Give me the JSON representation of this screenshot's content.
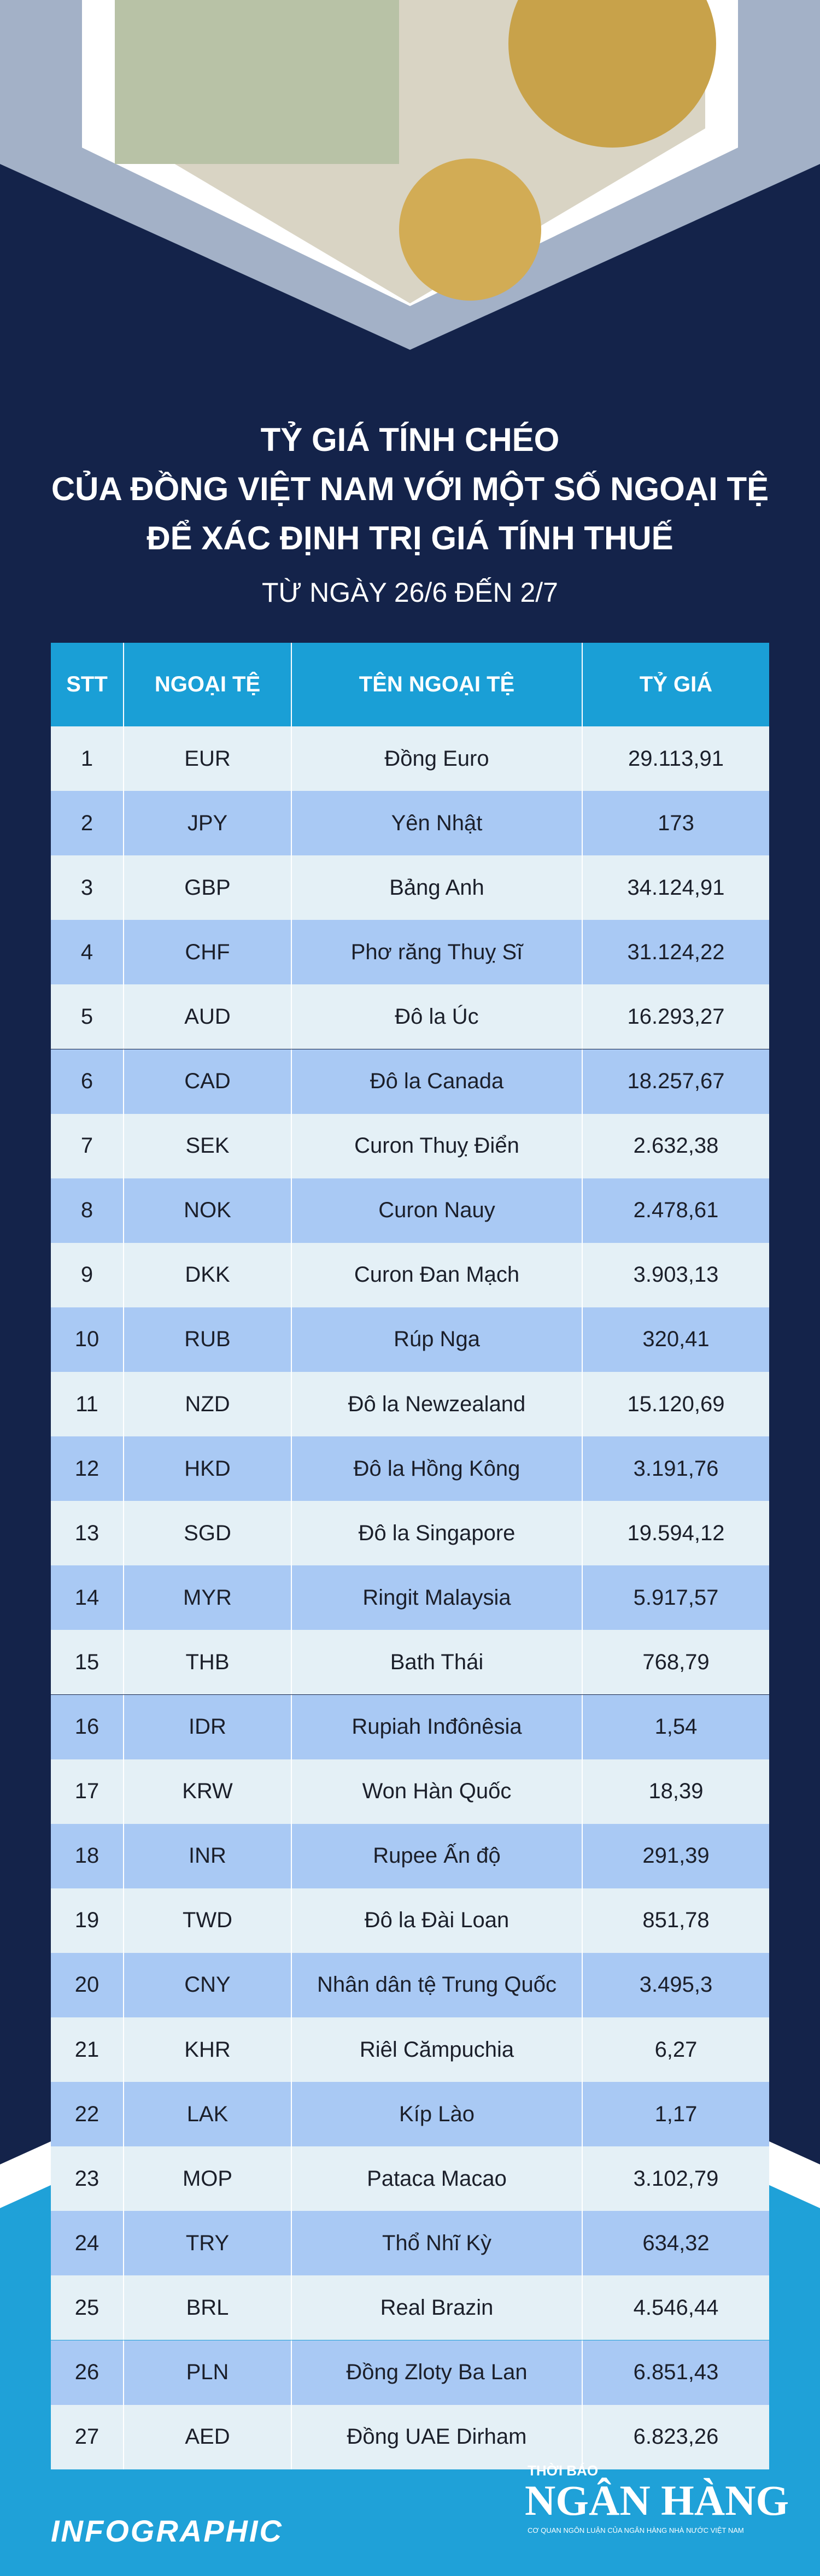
{
  "title": [
    "TỶ GIÁ TÍNH CHÉO",
    "CỦA ĐỒNG VIỆT NAM VỚI MỘT SỐ NGOẠI TỆ",
    "ĐỂ XÁC ĐỊNH TRỊ GIÁ TÍNH THUẾ"
  ],
  "subtitle": "TỪ NGÀY 26/6 ĐẾN 2/7",
  "table": {
    "header": [
      "STT",
      "NGOẠI TỆ",
      "TÊN NGOẠI TỆ",
      "TỶ GIÁ"
    ],
    "rows": [
      [
        "1",
        "EUR",
        "Đồng Euro",
        "29.113,91"
      ],
      [
        "2",
        "JPY",
        "Yên Nhật",
        "173"
      ],
      [
        "3",
        "GBP",
        "Bảng Anh",
        "34.124,91"
      ],
      [
        "4",
        "CHF",
        "Phơ răng Thuỵ Sĩ",
        "31.124,22"
      ],
      [
        "5",
        "AUD",
        "Đô la Úc",
        "16.293,27"
      ],
      [
        "6",
        "CAD",
        "Đô la Canada",
        "18.257,67"
      ],
      [
        "7",
        "SEK",
        "Curon Thuỵ Điển",
        "2.632,38"
      ],
      [
        "8",
        "NOK",
        "Curon Nauy",
        "2.478,61"
      ],
      [
        "9",
        "DKK",
        "Curon Đan Mạch",
        "3.903,13"
      ],
      [
        "10",
        "RUB",
        "Rúp Nga",
        "320,41"
      ],
      [
        "11",
        "NZD",
        "Đô la Newzealand",
        "15.120,69"
      ],
      [
        "12",
        "HKD",
        "Đô la Hồng Kông",
        "3.191,76"
      ],
      [
        "13",
        "SGD",
        "Đô la Singapore",
        "19.594,12"
      ],
      [
        "14",
        "MYR",
        "Ringit Malaysia",
        "5.917,57"
      ],
      [
        "15",
        "THB",
        "Bath Thái",
        "768,79"
      ],
      [
        "16",
        "IDR",
        "Rupiah Inđônêsia",
        "1,54"
      ],
      [
        "17",
        "KRW",
        "Won Hàn Quốc",
        "18,39"
      ],
      [
        "18",
        "INR",
        "Rupee Ấn độ",
        "291,39"
      ],
      [
        "19",
        "TWD",
        "Đô la Đài Loan",
        "851,78"
      ],
      [
        "20",
        "CNY",
        "Nhân dân tệ Trung Quốc",
        "3.495,3"
      ],
      [
        "21",
        "KHR",
        "Riêl Cămpuchia",
        "6,27"
      ],
      [
        "22",
        "LAK",
        "Kíp Lào",
        "1,17"
      ],
      [
        "23",
        "MOP",
        "Pataca Macao",
        "3.102,79"
      ],
      [
        "24",
        "TRY",
        "Thổ Nhĩ Kỳ",
        "634,32"
      ],
      [
        "25",
        "BRL",
        "Real Brazin",
        "4.546,44"
      ],
      [
        "26",
        "PLN",
        "Đồng Zloty Ba Lan",
        "6.851,43"
      ],
      [
        "27",
        "AED",
        "Đồng UAE Dirham",
        "6.823,26"
      ]
    ]
  },
  "footer": {
    "label": "INFOGRAPHIC",
    "logo_top": "THỜI BÁO",
    "logo_main": "NGÂN HÀNG",
    "logo_sub": "CƠ QUAN NGÔN LUẬN CỦA NGÂN HÀNG NHÀ NƯỚC VIỆT NAM"
  }
}
